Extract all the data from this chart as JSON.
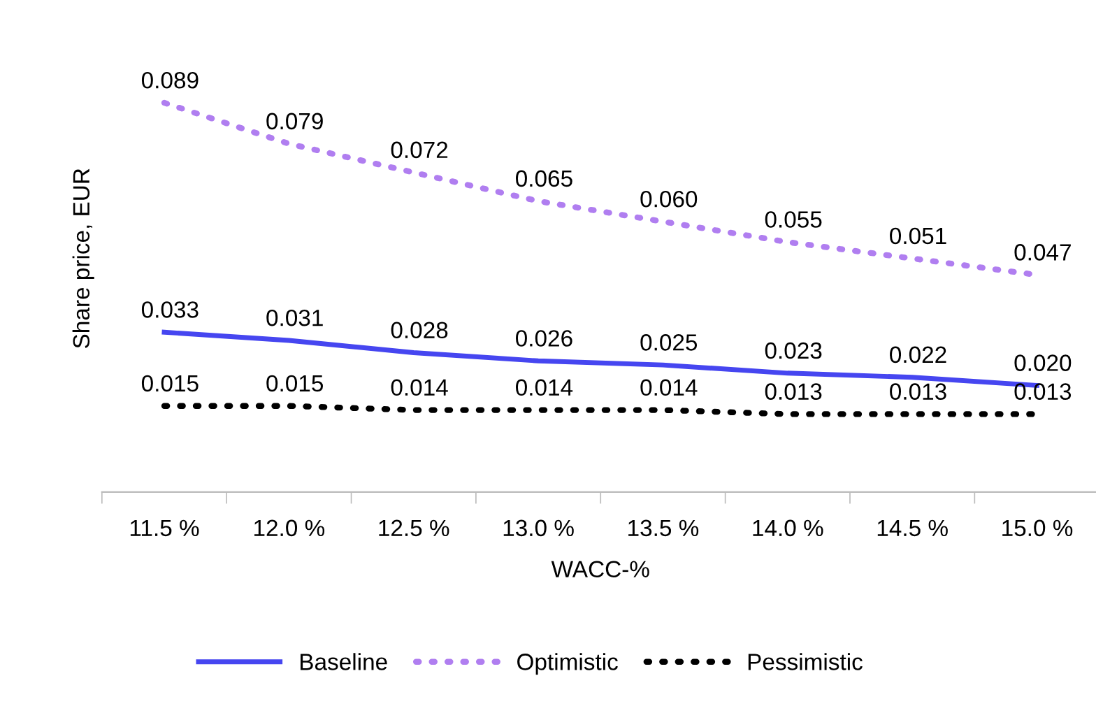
{
  "chart_data": {
    "type": "line",
    "xlabel": "WACC-%",
    "ylabel": "Share price, EUR",
    "categories": [
      "11.5 %",
      "12.0 %",
      "12.5 %",
      "13.0 %",
      "13.5 %",
      "14.0 %",
      "14.5 %",
      "15.0 %"
    ],
    "series": [
      {
        "name": "Baseline",
        "color": "#4646f0",
        "line_style": "solid",
        "values": [
          0.033,
          0.031,
          0.028,
          0.026,
          0.025,
          0.023,
          0.022,
          0.02
        ],
        "value_labels": [
          "0.033",
          "0.031",
          "0.028",
          "0.026",
          "0.025",
          "0.023",
          "0.022",
          "0.020"
        ]
      },
      {
        "name": "Optimistic",
        "color": "#b07ef0",
        "line_style": "dotted",
        "values": [
          0.089,
          0.079,
          0.072,
          0.065,
          0.06,
          0.055,
          0.051,
          0.047
        ],
        "value_labels": [
          "0.089",
          "0.079",
          "0.072",
          "0.065",
          "0.060",
          "0.055",
          "0.051",
          "0.047"
        ]
      },
      {
        "name": "Pessimistic",
        "color": "#000000",
        "line_style": "dotted",
        "values": [
          0.015,
          0.015,
          0.014,
          0.014,
          0.014,
          0.013,
          0.013,
          0.013
        ],
        "value_labels": [
          "0.015",
          "0.015",
          "0.014",
          "0.014",
          "0.014",
          "0.013",
          "0.013",
          "0.013"
        ]
      }
    ],
    "legend": "bottom",
    "grid": false,
    "marker": "none"
  }
}
